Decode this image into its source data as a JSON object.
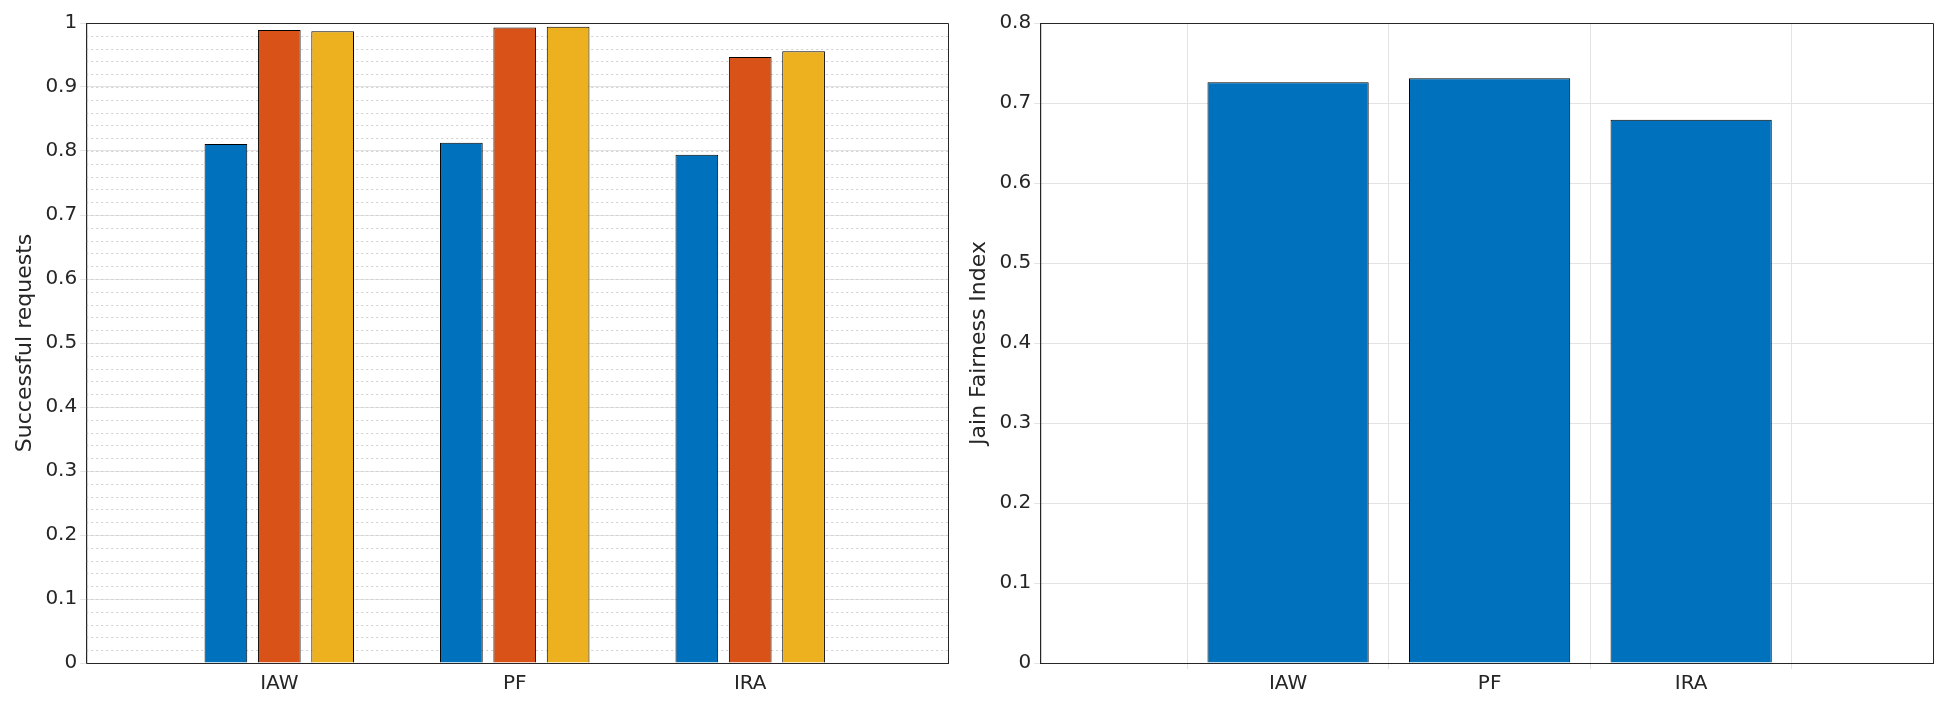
{
  "chart_data": [
    {
      "type": "bar",
      "ylabel": "Successful requests",
      "categories": [
        "IAW",
        "PF",
        "IRA"
      ],
      "series": [
        {
          "color": "#0072bd",
          "values": [
            0.811,
            0.813,
            0.794
          ]
        },
        {
          "color": "#d95319",
          "values": [
            0.989,
            0.993,
            0.947
          ]
        },
        {
          "color": "#edb120",
          "values": [
            0.987,
            0.994,
            0.956
          ]
        }
      ],
      "ylim": [
        0,
        1
      ],
      "yticks": [
        0,
        0.1,
        0.2,
        0.3,
        0.4,
        0.5,
        0.6,
        0.7,
        0.8,
        0.9,
        1
      ],
      "grid": "y"
    },
    {
      "type": "bar",
      "ylabel": "Jain Fairness Index",
      "categories": [
        "IAW",
        "PF",
        "IRA"
      ],
      "values": [
        0.726,
        0.731,
        0.679
      ],
      "color": "#0072bd",
      "ylim": [
        0,
        0.8
      ],
      "yticks": [
        0,
        0.1,
        0.2,
        0.3,
        0.4,
        0.5,
        0.6,
        0.7,
        0.8
      ],
      "grid": true
    }
  ]
}
